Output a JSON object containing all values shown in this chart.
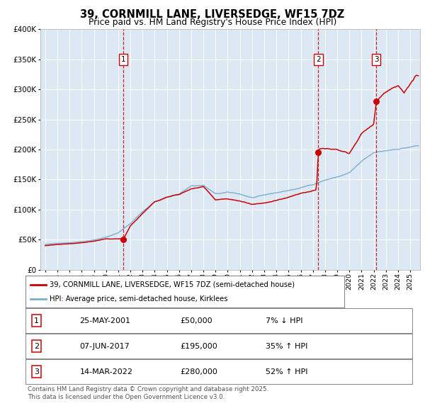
{
  "title": "39, CORNMILL LANE, LIVERSEDGE, WF15 7DZ",
  "subtitle": "Price paid vs. HM Land Registry's House Price Index (HPI)",
  "bg_color": "#dce9f5",
  "grid_color": "#ffffff",
  "red_line_color": "#cc0000",
  "blue_line_color": "#7aadcc",
  "dashed_line_color": "#cc0000",
  "marker_color": "#cc0000",
  "sale_prices": [
    50000,
    195000,
    280000
  ],
  "sale_years": [
    2001.4,
    2017.45,
    2022.21
  ],
  "sale_labels": [
    "1",
    "2",
    "3"
  ],
  "ylim": [
    0,
    400000
  ],
  "yticks": [
    0,
    50000,
    100000,
    150000,
    200000,
    250000,
    300000,
    350000,
    400000
  ],
  "ytick_labels": [
    "£0",
    "£50K",
    "£100K",
    "£150K",
    "£200K",
    "£250K",
    "£300K",
    "£350K",
    "£400K"
  ],
  "xlim_start": 1994.6,
  "xlim_end": 2025.8,
  "legend_line1": "39, CORNMILL LANE, LIVERSEDGE, WF15 7DZ (semi-detached house)",
  "legend_line2": "HPI: Average price, semi-detached house, Kirklees",
  "table_rows": [
    [
      "1",
      "25-MAY-2001",
      "£50,000",
      "7% ↓ HPI"
    ],
    [
      "2",
      "07-JUN-2017",
      "£195,000",
      "35% ↑ HPI"
    ],
    [
      "3",
      "14-MAR-2022",
      "£280,000",
      "52% ↑ HPI"
    ]
  ],
  "footer": "Contains HM Land Registry data © Crown copyright and database right 2025.\nThis data is licensed under the Open Government Licence v3.0."
}
